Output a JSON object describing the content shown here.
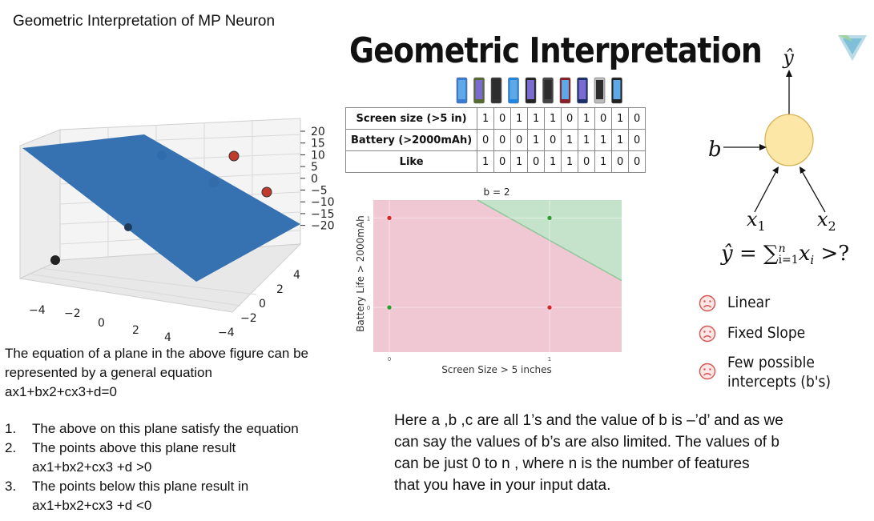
{
  "slide_title": "Geometric Interpretation of MP Neuron",
  "heading": "Geometric Interpretation",
  "plot3d": {
    "z_ticks": [
      "20",
      "15",
      "10",
      "5",
      "0",
      "−5",
      "−10",
      "−15",
      "−20"
    ],
    "x_ticks": [
      "−4",
      "−2",
      "0",
      "2",
      "4"
    ],
    "y_ticks": [
      "−4",
      "−2",
      "0",
      "2",
      "4"
    ],
    "plane_color": "#2f6db0"
  },
  "equation_text": {
    "line1": "The equation of a plane in the above figure can be",
    "line2": "represented by a general equation",
    "line3": "ax1+bx2+cx3+d=0"
  },
  "points_list": [
    {
      "num": "1.",
      "text": "The above on this plane satisfy the equation",
      "sub": ""
    },
    {
      "num": "2.",
      "text": "The points above this plane result",
      "sub": "ax1+bx2+cx3 +d >0"
    },
    {
      "num": "3.",
      "text": "The points below this plane result in",
      "sub": "ax1+bx2+cx3 +d <0"
    }
  ],
  "table": {
    "rows": [
      {
        "label": "Screen size (>5 in)",
        "values": [
          "1",
          "0",
          "1",
          "1",
          "1",
          "0",
          "1",
          "0",
          "1",
          "0"
        ]
      },
      {
        "label": "Battery (>2000mAh)",
        "values": [
          "0",
          "0",
          "0",
          "1",
          "0",
          "1",
          "1",
          "1",
          "1",
          "0"
        ]
      },
      {
        "label": "Like",
        "values": [
          "1",
          "0",
          "1",
          "0",
          "1",
          "1",
          "0",
          "1",
          "0",
          "0"
        ]
      }
    ]
  },
  "scatter2d": {
    "title": "b = 2",
    "xlabel": "Screen Size > 5 inches",
    "ylabel": "Battery Life > 2000mAh",
    "x_ticks": [
      "0",
      "1"
    ],
    "y_ticks": [
      "0",
      "1"
    ]
  },
  "chart_data": {
    "type": "scatter",
    "title": "b = 2",
    "xlabel": "Screen Size > 5 inches",
    "ylabel": "Battery Life > 2000mAh",
    "xlim": [
      -0.1,
      1.45
    ],
    "ylim": [
      -0.5,
      1.2
    ],
    "decision_boundary": {
      "x": [
        0.55,
        1.45
      ],
      "y": [
        1.2,
        0.3
      ]
    },
    "points": [
      {
        "x": 0,
        "y": 1,
        "color": "#d62728"
      },
      {
        "x": 0,
        "y": 0,
        "color": "#2ca02c"
      },
      {
        "x": 1,
        "y": 1,
        "color": "#2ca02c"
      },
      {
        "x": 1,
        "y": 0,
        "color": "#d62728"
      }
    ],
    "region_colors": {
      "negative": "#f0c8d4",
      "positive": "#c5e3cb"
    }
  },
  "neuron": {
    "output": "ŷ",
    "bias": "b",
    "input1": "x",
    "input1_sub": "1",
    "input2": "x",
    "input2_sub": "2",
    "node_color": "#fde7a6"
  },
  "formula": {
    "lhs": "ŷ = ∑",
    "sup": "n",
    "sub": "i=1",
    "rhs": "x",
    "rhs_sub": "i",
    "tail": " >?"
  },
  "properties": [
    {
      "icon": "sad-face-icon",
      "text": "Linear"
    },
    {
      "icon": "sad-face-icon",
      "text": "Fixed Slope"
    },
    {
      "icon": "sad-face-icon",
      "text": "Few possible",
      "text2": "intercepts (b's)"
    }
  ],
  "explain_text": {
    "line1": "Here a ,b ,c are all 1’s and the value of b is –’d’ and as we",
    "line2": "can say the values of b’s are also limited.  The values of b",
    "line3": "can be just 0 to n , where n is the number of features",
    "line4": "that you have in your input data."
  }
}
